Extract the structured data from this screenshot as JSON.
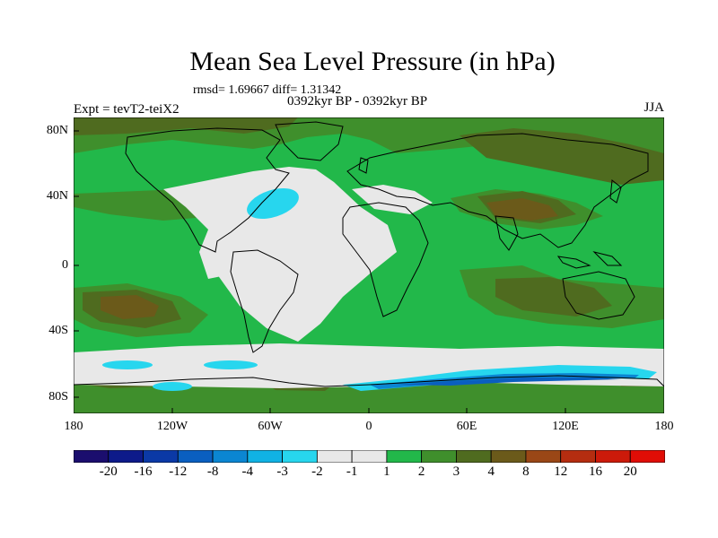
{
  "title": "Mean Sea Level Pressure (in hPa)",
  "stats_line": "rmsd= 1.69667 diff= 1.31342",
  "period_line": "0392kyr BP - 0392kyr BP",
  "experiment": "Expt = tevT2-teiX2",
  "season": "JJA",
  "lat_labels": [
    "80N",
    "40N",
    "0",
    "40S",
    "80S"
  ],
  "lon_labels": [
    "180",
    "120W",
    "60W",
    "0",
    "60E",
    "120E",
    "180"
  ],
  "colorbar": {
    "labels": [
      "-20",
      "-16",
      "-12",
      "-8",
      "-4",
      "-3",
      "-2",
      "-1",
      "1",
      "2",
      "3",
      "4",
      "8",
      "12",
      "16",
      "20"
    ],
    "colors": [
      "#1b0e6e",
      "#0d1a8a",
      "#0b39a6",
      "#0a5fc0",
      "#0b86d2",
      "#10b2e4",
      "#27d6ee",
      "#e8e8e8",
      "#e8e8e8",
      "#22b84a",
      "#3f8f2c",
      "#4f6b1f",
      "#6b5a1a",
      "#9a4716",
      "#b52d10",
      "#cc1a0a",
      "#e00d06"
    ]
  },
  "map_colors": {
    "pos_1_2": "#22b84a",
    "pos_2_3": "#3f8f2c",
    "pos_3_4": "#4f6b1f",
    "pos_4_8": "#6b5a1a",
    "neutral": "#e8e8e8",
    "neg_1_2": "#27d6ee",
    "neg_2_3": "#10b2e4",
    "neg_3_4": "#0b86d2",
    "neg_4_8": "#0a5fc0",
    "coast": "#000000"
  }
}
